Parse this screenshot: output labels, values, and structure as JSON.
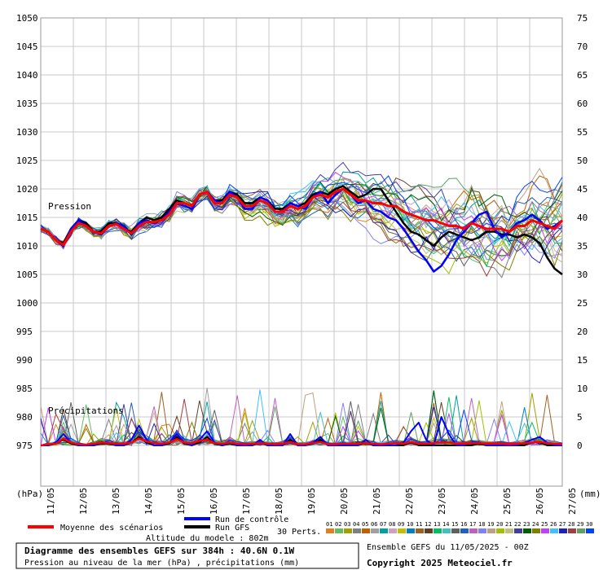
{
  "chart_data": {
    "type": "line",
    "title": "Diagramme des ensembles GEFS sur 384h : 40.6N 0.1W",
    "subtitle": "Pression au niveau de la mer (hPa) , précipitations (mm)",
    "left_axis_unit": "(hPa)",
    "right_axis_unit": "(mm)",
    "pressure_label": "Pression",
    "precip_label": "Précipitations",
    "left_ticks": [
      975,
      980,
      985,
      990,
      995,
      1000,
      1005,
      1010,
      1015,
      1020,
      1025,
      1030,
      1035,
      1040,
      1045,
      1050
    ],
    "right_ticks": [
      0,
      5,
      10,
      15,
      20,
      25,
      30,
      35,
      40,
      45,
      50,
      55,
      60,
      65,
      70,
      75
    ],
    "pressure_ylim": [
      975,
      1050
    ],
    "precip_ylim": [
      0,
      75
    ],
    "x_labels": [
      "11/05",
      "12/05",
      "13/05",
      "14/05",
      "15/05",
      "16/05",
      "17/05",
      "18/05",
      "19/05",
      "20/05",
      "21/05",
      "22/05",
      "23/05",
      "24/05",
      "25/05",
      "26/05",
      "27/05"
    ],
    "grid": true,
    "series": [
      {
        "name": "Moyenne des scénarios",
        "color": "#ff0000",
        "pressure": [
          1013,
          1012.5,
          1011,
          1010.2,
          1012.5,
          1014,
          1013.5,
          1012.5,
          1012.2,
          1013.5,
          1013.8,
          1013,
          1012.2,
          1013.5,
          1014.2,
          1014.2,
          1014.5,
          1015.5,
          1017.5,
          1017.5,
          1017,
          1019,
          1019.5,
          1017.5,
          1017.5,
          1019,
          1018.5,
          1017,
          1017,
          1018,
          1017.5,
          1016,
          1016,
          1017,
          1016.5,
          1017,
          1018.5,
          1019,
          1018.5,
          1019.5,
          1020,
          1019,
          1018,
          1018,
          1017.5,
          1017.5,
          1017,
          1017,
          1016,
          1015.5,
          1015,
          1014.5,
          1014.5,
          1014,
          1013.5,
          1013.5,
          1013,
          1014,
          1013.5,
          1013,
          1013,
          1013,
          1012.5,
          1013.5,
          1013.5,
          1014.5,
          1014,
          1013.5,
          1013,
          1014.5
        ],
        "precip": [
          0,
          0.2,
          0.3,
          1.2,
          0.5,
          0.2,
          0.1,
          0.3,
          0.5,
          0.4,
          0.3,
          0.3,
          0.5,
          1.2,
          0.7,
          0.4,
          0.3,
          0.5,
          1.1,
          0.5,
          0.4,
          0.8,
          1.0,
          0.4,
          0.3,
          0.5,
          0.3,
          0.2,
          0.3,
          0.4,
          0.3,
          0.2,
          0.3,
          0.6,
          0.2,
          0.2,
          0.4,
          0.6,
          0.2,
          0.2,
          0.3,
          0.3,
          0.3,
          0.4,
          0.3,
          0.2,
          0.3,
          0.4,
          0.3,
          0.6,
          0.3,
          0.3,
          0.4,
          0.5,
          0.5,
          0.3,
          0.3,
          0.4,
          0.4,
          0.3,
          0.3,
          0.3,
          0.2,
          0.3,
          0.4,
          0.5,
          0.6,
          0.4,
          0.3,
          0.2
        ]
      },
      {
        "name": "Run de contrôle",
        "color": "#0000ff",
        "pressure": [
          1013,
          1012.5,
          1011,
          1010,
          1013,
          1014.5,
          1013.5,
          1012.5,
          1012,
          1013.5,
          1014,
          1013.5,
          1012,
          1014,
          1014.5,
          1014,
          1014.5,
          1016,
          1017.5,
          1017,
          1016.5,
          1019,
          1019.5,
          1018,
          1017.5,
          1019.5,
          1018.5,
          1016.5,
          1016.5,
          1018.5,
          1018,
          1016,
          1016,
          1017.5,
          1017,
          1016.5,
          1018.5,
          1019.5,
          1017.5,
          1019,
          1020,
          1019,
          1017.5,
          1018,
          1016.5,
          1016,
          1015,
          1014.5,
          1013,
          1011,
          1009,
          1007.5,
          1005.5,
          1006.5,
          1008.5,
          1011,
          1012.5,
          1014,
          1015.5,
          1016,
          1013,
          1011.5,
          1012.5,
          1014,
          1014.5,
          1015.5,
          1014.5,
          1013,
          1013.5,
          1014.5
        ],
        "precip": [
          0,
          0,
          0.5,
          2,
          0.5,
          0,
          0,
          0,
          0.5,
          0.5,
          0,
          0,
          1,
          3.5,
          1,
          0,
          0,
          0.5,
          2,
          0.5,
          0,
          1,
          2.5,
          0.5,
          0,
          0.5,
          0,
          0,
          0,
          1,
          0,
          0,
          0,
          2,
          0,
          0,
          0.5,
          1.5,
          0,
          0,
          0,
          0,
          0,
          1,
          0,
          0,
          0,
          0,
          0.5,
          2.5,
          4,
          1,
          0,
          5,
          2,
          0,
          0,
          0.5,
          0.5,
          0,
          0,
          0,
          0,
          0,
          0.5,
          1,
          1.5,
          0.5,
          0,
          0
        ]
      },
      {
        "name": "Run GFS",
        "color": "#000000",
        "pressure": [
          1013,
          1012.5,
          1011,
          1010.5,
          1013,
          1014.5,
          1014,
          1012.5,
          1012.5,
          1014,
          1014,
          1013,
          1012.5,
          1014,
          1015,
          1014.5,
          1015,
          1016.5,
          1018,
          1017.5,
          1017,
          1019,
          1019.5,
          1018,
          1018,
          1019.5,
          1019,
          1017.5,
          1017.5,
          1018.5,
          1018,
          1016.5,
          1016.5,
          1017.5,
          1017,
          1017.5,
          1019,
          1019.5,
          1019,
          1020,
          1020.5,
          1019.5,
          1018.5,
          1019,
          1020,
          1020,
          1018,
          1016,
          1014,
          1012.5,
          1012,
          1011,
          1010,
          1011.5,
          1012.5,
          1012,
          1011.5,
          1011,
          1011.5,
          1012.5,
          1012.5,
          1012,
          1012,
          1011.5,
          1012,
          1011.5,
          1010.5,
          1008,
          1006,
          1005
        ],
        "precip": [
          0,
          0,
          0.3,
          1,
          0.3,
          0,
          0,
          0,
          0.3,
          0.3,
          0,
          0,
          0.5,
          1.5,
          0.5,
          0,
          0,
          0.3,
          1.5,
          0.3,
          0,
          0.5,
          1.5,
          0.3,
          0,
          0.3,
          0,
          0,
          0,
          0.5,
          0,
          0,
          0,
          1,
          0,
          0,
          0.3,
          1,
          0,
          0,
          0,
          0,
          0,
          0.5,
          0,
          0,
          0,
          0,
          0,
          0.5,
          0,
          0,
          0,
          0,
          0,
          0,
          0,
          0,
          0.3,
          0,
          0,
          0,
          0,
          0,
          0,
          0.5,
          0.5,
          0,
          0,
          0
        ]
      }
    ],
    "perturbations": {
      "count": 30,
      "steps": 70,
      "spread_end": 9,
      "seed": 17
    }
  },
  "legend": {
    "mean_label": "Moyenne des scénarios",
    "control_label": "Run de contrôle",
    "gfs_label": "Run GFS",
    "perts_label": "30 Perts.",
    "altitude_label": "Altitude du modele : 802m",
    "pert_codes": [
      "01",
      "02",
      "03",
      "04",
      "05",
      "06",
      "07",
      "08",
      "09",
      "10",
      "11",
      "12",
      "13",
      "14",
      "15",
      "16",
      "17",
      "18",
      "19",
      "20",
      "21",
      "22",
      "23",
      "24",
      "25",
      "26",
      "27",
      "28",
      "29",
      "30"
    ],
    "pert_colors": [
      "#e08020",
      "#60c060",
      "#a0a000",
      "#808080",
      "#c06000",
      "#a0a0a0",
      "#00a0a0",
      "#d0a0c0",
      "#c0c000",
      "#0080c0",
      "#a06020",
      "#604020",
      "#00c060",
      "#40c0c0",
      "#606060",
      "#2060c0",
      "#c060c0",
      "#8080ff",
      "#c0a080",
      "#a0c000",
      "#c0c080",
      "#4040a0",
      "#006000",
      "#808000",
      "#c040ff",
      "#40c0ff",
      "#2020c0",
      "#a04040",
      "#60a060",
      "#0040ff"
    ]
  },
  "footer": {
    "ensemble_label": "Ensemble GEFS du 11/05/2025 - 00Z",
    "copyright": "Copyright 2025 Meteociel.fr"
  }
}
